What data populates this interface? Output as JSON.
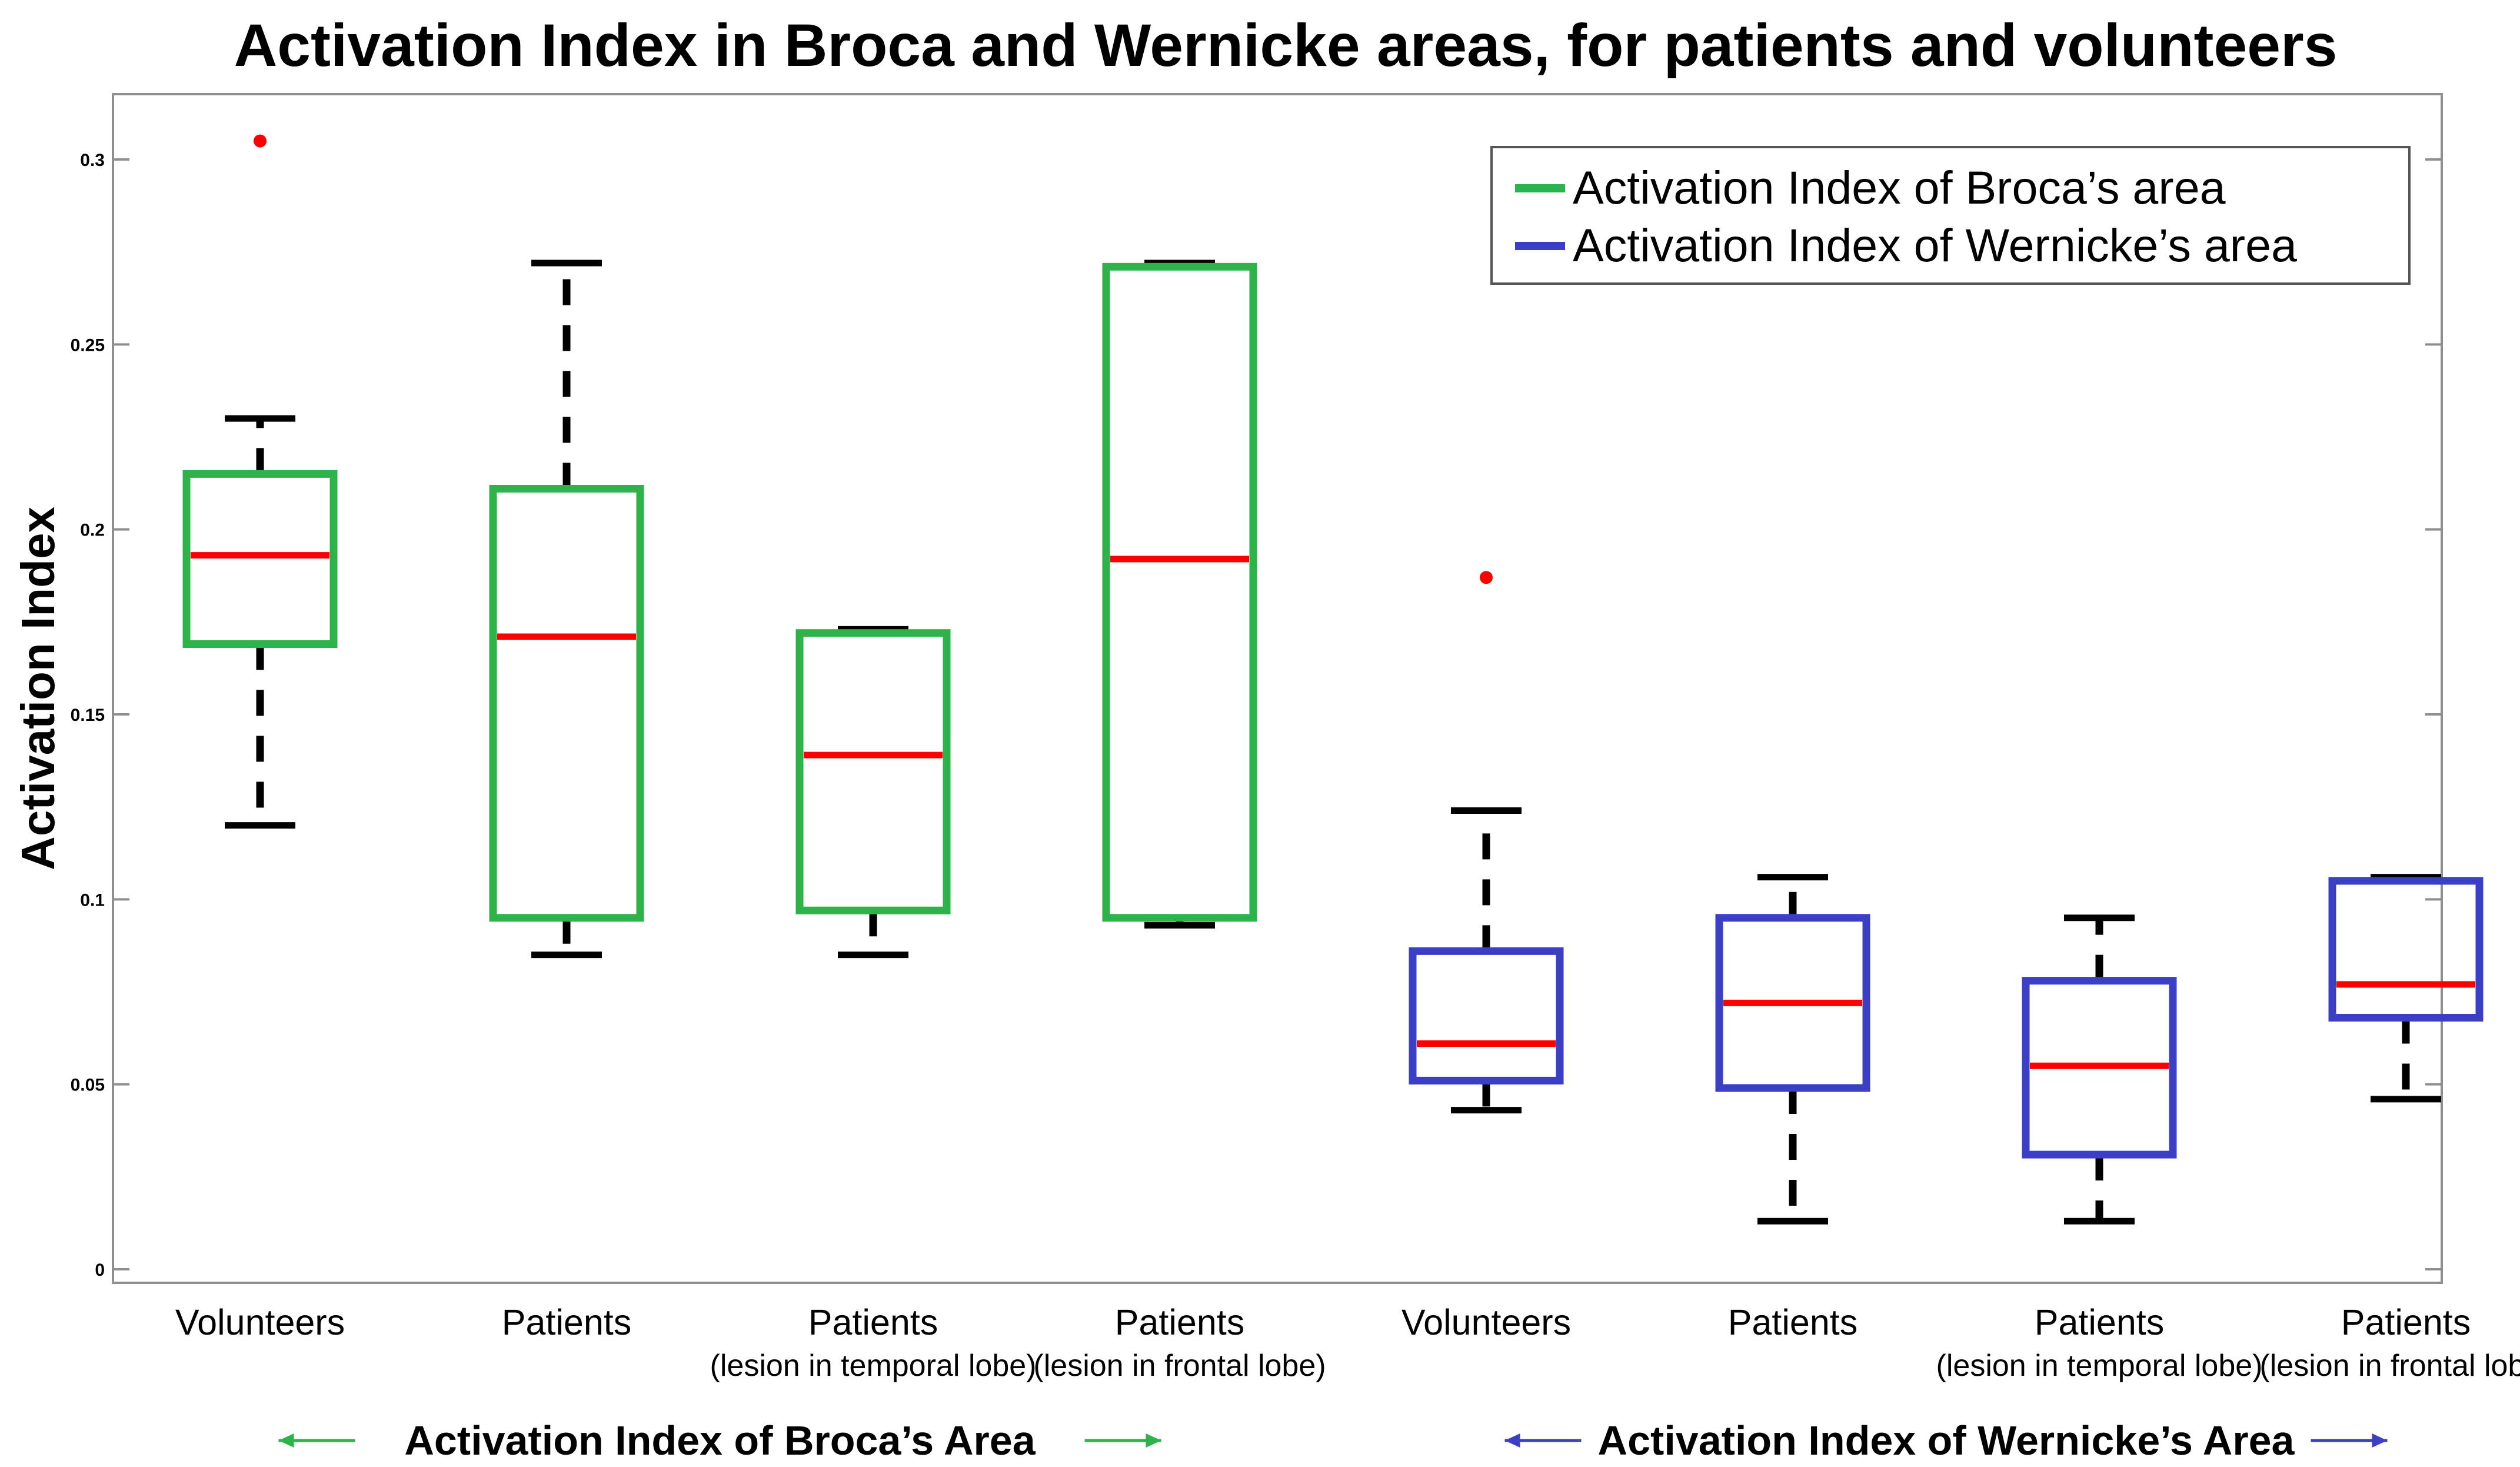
{
  "chart_data": {
    "type": "boxplot",
    "title": "Activation Index in Broca and Wernicke areas, for patients and volunteers",
    "ylabel": "Activation Index",
    "xlabel": "",
    "ylim": [
      0,
      0.32
    ],
    "yticks": [
      0,
      0.05,
      0.1,
      0.15,
      0.2,
      0.25,
      0.3
    ],
    "ytick_labels": [
      "0",
      "0.05",
      "0.1",
      "0.15",
      "0.2",
      "0.25",
      "0.3"
    ],
    "grid": false,
    "colors": {
      "broca": "#2db34a",
      "wernicke": "#3b3fc4",
      "median": "#ff0000",
      "whisker": "#000000",
      "outlier": "#ff0000"
    },
    "legend": {
      "position": "top-right",
      "entries": [
        {
          "label": "Activation Index of Broca’s area",
          "series": "broca"
        },
        {
          "label": "Activation Index of Wernicke’s area",
          "series": "wernicke"
        }
      ]
    },
    "boxes": [
      {
        "label": "Volunteers",
        "sublabel": "",
        "series": "broca",
        "whisker_low": 0.12,
        "q1": 0.169,
        "median": 0.193,
        "q3": 0.215,
        "whisker_high": 0.23,
        "outliers": [
          0.305
        ]
      },
      {
        "label": "Patients",
        "sublabel": "",
        "series": "broca",
        "whisker_low": 0.085,
        "q1": 0.095,
        "median": 0.171,
        "q3": 0.211,
        "whisker_high": 0.272,
        "outliers": []
      },
      {
        "label": "Patients",
        "sublabel": "(lesion in temporal lobe)",
        "series": "broca",
        "whisker_low": 0.085,
        "q1": 0.097,
        "median": 0.139,
        "q3": 0.172,
        "whisker_high": 0.173,
        "outliers": []
      },
      {
        "label": "Patients",
        "sublabel": "(lesion in frontal lobe)",
        "series": "broca",
        "whisker_low": 0.093,
        "q1": 0.095,
        "median": 0.192,
        "q3": 0.271,
        "whisker_high": 0.272,
        "outliers": []
      },
      {
        "label": "Volunteers",
        "sublabel": "",
        "series": "wernicke",
        "whisker_low": 0.043,
        "q1": 0.051,
        "median": 0.061,
        "q3": 0.086,
        "whisker_high": 0.124,
        "outliers": [
          0.187
        ]
      },
      {
        "label": "Patients",
        "sublabel": "",
        "series": "wernicke",
        "whisker_low": 0.013,
        "q1": 0.049,
        "median": 0.072,
        "q3": 0.095,
        "whisker_high": 0.106,
        "outliers": []
      },
      {
        "label": "Patients",
        "sublabel": "(lesion in temporal lobe)",
        "series": "wernicke",
        "whisker_low": 0.013,
        "q1": 0.031,
        "median": 0.055,
        "q3": 0.078,
        "whisker_high": 0.095,
        "outliers": []
      },
      {
        "label": "Patients",
        "sublabel": "(lesion in frontal lobe)",
        "series": "wernicke",
        "whisker_low": 0.046,
        "q1": 0.068,
        "median": 0.077,
        "q3": 0.105,
        "whisker_high": 0.106,
        "outliers": []
      }
    ],
    "group_labels": [
      {
        "label": "Activation Index of Broca’s Area",
        "series": "broca",
        "spans": [
          0,
          3
        ]
      },
      {
        "label": "Activation Index of Wernicke’s Area",
        "series": "wernicke",
        "spans": [
          4,
          7
        ]
      }
    ]
  }
}
